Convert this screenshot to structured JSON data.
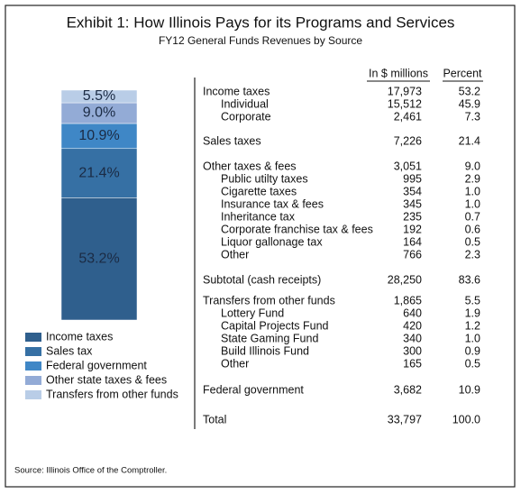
{
  "chart_data": {
    "type": "bar",
    "stacked": true,
    "title": "Exhibit 1:  How Illinois Pays for its Programs and Services",
    "subtitle": "FY12 General Funds Revenues by Source",
    "ylim": [
      0,
      100
    ],
    "series": [
      {
        "name": "Income taxes",
        "color": "#2f5f8d",
        "values": [
          53.2
        ],
        "value_labels": [
          "53.2%"
        ]
      },
      {
        "name": "Sales tax",
        "color": "#3670a4",
        "values": [
          21.4
        ],
        "value_labels": [
          "21.4%"
        ]
      },
      {
        "name": "Federal government",
        "color": "#3f87c6",
        "values": [
          10.9
        ],
        "value_labels": [
          "10.9%"
        ]
      },
      {
        "name": "Other state taxes & fees",
        "color": "#93abd6",
        "values": [
          9.0
        ],
        "value_labels": [
          "9.0%"
        ]
      },
      {
        "name": "Transfers from other funds",
        "color": "#b9cde7",
        "values": [
          5.5
        ],
        "value_labels": [
          "5.5%"
        ]
      }
    ]
  },
  "table": {
    "headers": [
      "In $ millions",
      "Percent"
    ],
    "groups": [
      {
        "label": "Income taxes",
        "amount": "17,973",
        "percent": "53.2",
        "items": [
          {
            "label": "Individual",
            "amount": "15,512",
            "percent": "45.9"
          },
          {
            "label": "Corporate",
            "amount": "2,461",
            "percent": "7.3"
          }
        ]
      },
      {
        "label": "Sales taxes",
        "amount": "7,226",
        "percent": "21.4",
        "items": []
      },
      {
        "label": "Other taxes & fees",
        "amount": "3,051",
        "percent": "9.0",
        "items": [
          {
            "label": "Public utilty taxes",
            "amount": "995",
            "percent": "2.9"
          },
          {
            "label": "Cigarette taxes",
            "amount": "354",
            "percent": "1.0"
          },
          {
            "label": "Insurance tax & fees",
            "amount": "345",
            "percent": "1.0"
          },
          {
            "label": "Inheritance tax",
            "amount": "235",
            "percent": "0.7"
          },
          {
            "label": "Corporate franchise tax & fees",
            "amount": "192",
            "percent": "0.6"
          },
          {
            "label": "Liquor gallonage tax",
            "amount": "164",
            "percent": "0.5"
          },
          {
            "label": "Other",
            "amount": "766",
            "percent": "2.3"
          }
        ]
      },
      {
        "label": "Subtotal (cash receipts)",
        "amount": "28,250",
        "percent": "83.6",
        "items": []
      },
      {
        "label": "Transfers from other funds",
        "amount": "1,865",
        "percent": "5.5",
        "items": [
          {
            "label": "Lottery Fund",
            "amount": "640",
            "percent": "1.9"
          },
          {
            "label": "Capital Projects Fund",
            "amount": "420",
            "percent": "1.2"
          },
          {
            "label": "State Gaming Fund",
            "amount": "340",
            "percent": "1.0"
          },
          {
            "label": "Build Illinois Fund",
            "amount": "300",
            "percent": "0.9"
          },
          {
            "label": "Other",
            "amount": "165",
            "percent": "0.5"
          }
        ]
      },
      {
        "label": "Federal government",
        "amount": "3,682",
        "percent": "10.9",
        "items": []
      },
      {
        "label": "Total",
        "amount": "33,797",
        "percent": "100.0",
        "items": []
      }
    ]
  },
  "source": "Source: Illinois Office of the Comptroller."
}
